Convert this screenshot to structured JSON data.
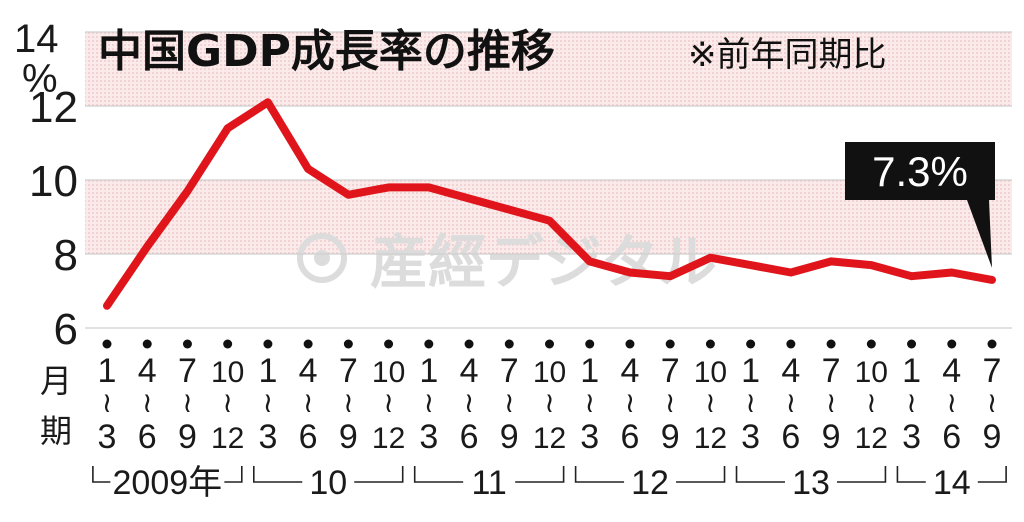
{
  "chart_data": {
    "type": "line",
    "title": "中国GDP成長率の推移",
    "subtitle": "※前年同期比",
    "y_unit_top": "14",
    "y_unit_pct": "%",
    "ylim": [
      6,
      14
    ],
    "yticks": [
      "6",
      "8",
      "10",
      "12"
    ],
    "shaded_bands": [
      [
        8,
        10
      ],
      [
        12,
        14
      ]
    ],
    "month_label": [
      "月",
      "期"
    ],
    "quarters": [
      {
        "start": "1",
        "end": "3"
      },
      {
        "start": "4",
        "end": "6"
      },
      {
        "start": "7",
        "end": "9"
      },
      {
        "start": "10",
        "end": "12"
      },
      {
        "start": "1",
        "end": "3"
      },
      {
        "start": "4",
        "end": "6"
      },
      {
        "start": "7",
        "end": "9"
      },
      {
        "start": "10",
        "end": "12"
      },
      {
        "start": "1",
        "end": "3"
      },
      {
        "start": "4",
        "end": "6"
      },
      {
        "start": "7",
        "end": "9"
      },
      {
        "start": "10",
        "end": "12"
      },
      {
        "start": "1",
        "end": "3"
      },
      {
        "start": "4",
        "end": "6"
      },
      {
        "start": "7",
        "end": "9"
      },
      {
        "start": "10",
        "end": "12"
      },
      {
        "start": "1",
        "end": "3"
      },
      {
        "start": "4",
        "end": "6"
      },
      {
        "start": "7",
        "end": "9"
      },
      {
        "start": "10",
        "end": "12"
      },
      {
        "start": "1",
        "end": "3"
      },
      {
        "start": "4",
        "end": "6"
      },
      {
        "start": "7",
        "end": "9"
      }
    ],
    "years": [
      {
        "label": "2009年",
        "first": 0,
        "last": 3
      },
      {
        "label": "10",
        "first": 4,
        "last": 7
      },
      {
        "label": "11",
        "first": 8,
        "last": 11
      },
      {
        "label": "12",
        "first": 12,
        "last": 15
      },
      {
        "label": "13",
        "first": 16,
        "last": 19
      },
      {
        "label": "14",
        "first": 20,
        "last": 22
      }
    ],
    "series": [
      {
        "values": [
          6.6,
          8.2,
          9.7,
          11.4,
          12.1,
          10.3,
          9.6,
          9.8,
          9.8,
          9.5,
          9.2,
          8.9,
          7.8,
          7.5,
          7.4,
          7.9,
          7.7,
          7.5,
          7.8,
          7.7,
          7.4,
          7.5,
          7.3
        ]
      }
    ],
    "line_color": "#e0151c",
    "callout": {
      "text": "7.3%",
      "index": 22
    },
    "watermark": "産經デジタル"
  }
}
